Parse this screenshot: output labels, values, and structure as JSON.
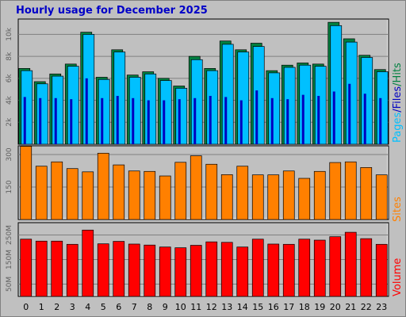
{
  "title": "Hourly usage for December 2025",
  "colors": {
    "hits": "#008040",
    "files": "#00c0ff",
    "pages": "#0000c0",
    "sites": "#ff8000",
    "volume": "#ff0000",
    "title": "#0000c8",
    "background": "#c0c0c0"
  },
  "side_labels": {
    "pages": "Pages",
    "files": "Files",
    "hits": "Hits",
    "sep": "/",
    "sites": "Sites",
    "volume": "Volume"
  },
  "chart_data": [
    {
      "type": "bar",
      "name": "hits-files-pages",
      "categories": [
        "0",
        "1",
        "2",
        "3",
        "4",
        "5",
        "6",
        "7",
        "8",
        "9",
        "10",
        "11",
        "12",
        "13",
        "14",
        "15",
        "16",
        "17",
        "18",
        "19",
        "20",
        "21",
        "22",
        "23"
      ],
      "y_ticks": [
        "2k",
        "4k",
        "6k",
        "8k",
        "10k"
      ],
      "ylim": [
        0,
        11400
      ],
      "series": [
        {
          "name": "Hits",
          "values": [
            6900,
            5700,
            6400,
            7300,
            10200,
            6100,
            8600,
            6300,
            6600,
            6000,
            5300,
            8000,
            6900,
            9400,
            8600,
            9200,
            6700,
            7200,
            7400,
            7300,
            11100,
            9600,
            8100,
            6800
          ]
        },
        {
          "name": "Files",
          "values": [
            6700,
            5500,
            6200,
            7100,
            10000,
            5900,
            8400,
            6100,
            6400,
            5800,
            5100,
            7700,
            6700,
            9100,
            8400,
            8900,
            6500,
            7000,
            7200,
            7100,
            10800,
            9300,
            7900,
            6600
          ]
        },
        {
          "name": "Pages",
          "values": [
            4300,
            4200,
            4200,
            4100,
            6000,
            4200,
            4400,
            4200,
            4000,
            4000,
            4100,
            4200,
            4400,
            4300,
            4000,
            4900,
            4200,
            4100,
            4500,
            4400,
            4800,
            5500,
            4600,
            4200
          ]
        }
      ]
    },
    {
      "type": "bar",
      "name": "sites",
      "categories": [
        "0",
        "1",
        "2",
        "3",
        "4",
        "5",
        "6",
        "7",
        "8",
        "9",
        "10",
        "11",
        "12",
        "13",
        "14",
        "15",
        "16",
        "17",
        "18",
        "19",
        "20",
        "21",
        "22",
        "23"
      ],
      "y_ticks": [
        "150",
        "300"
      ],
      "ylim": [
        0,
        340
      ],
      "series": [
        {
          "name": "Sites",
          "values": [
            338,
            246,
            266,
            235,
            220,
            306,
            252,
            224,
            222,
            201,
            264,
            294,
            255,
            207,
            246,
            206,
            206,
            224,
            190,
            222,
            263,
            266,
            240,
            206
          ]
        }
      ]
    },
    {
      "type": "bar",
      "name": "volume",
      "categories": [
        "0",
        "1",
        "2",
        "3",
        "4",
        "5",
        "6",
        "7",
        "8",
        "9",
        "10",
        "11",
        "12",
        "13",
        "14",
        "15",
        "16",
        "17",
        "18",
        "19",
        "20",
        "21",
        "22",
        "23"
      ],
      "y_ticks": [
        "50M",
        "150M",
        "250M"
      ],
      "ylim": [
        0,
        300
      ],
      "series": [
        {
          "name": "Volume",
          "values": [
            233,
            225,
            225,
            212,
            270,
            214,
            224,
            213,
            209,
            201,
            198,
            208,
            222,
            220,
            201,
            233,
            213,
            212,
            233,
            229,
            243,
            261,
            235,
            212
          ]
        }
      ]
    }
  ]
}
